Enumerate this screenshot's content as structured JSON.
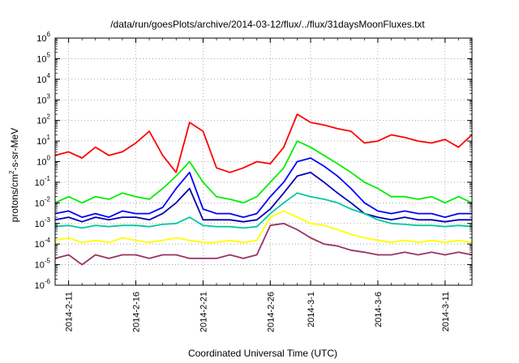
{
  "chart_data": {
    "type": "line",
    "title": "/data/run/goesPlots/archive/2014-03-12/flux/../flux/31daysMoonFluxes.txt",
    "xlabel": "Coordinated Universal Time (UTC)",
    "ylabel": "protons/cm2-s-sr-MeV",
    "ylabel_base": "protons/cm",
    "ylabel_exp": "2",
    "ylabel_rest": "-s-sr-MeV",
    "y_scale": "log",
    "ylim": [
      1e-06,
      1000000.0
    ],
    "y_ticks": [
      {
        "base": "10",
        "exp": "-6",
        "value": 1e-06
      },
      {
        "base": "10",
        "exp": "-5",
        "value": 1e-05
      },
      {
        "base": "10",
        "exp": "-4",
        "value": 0.0001
      },
      {
        "base": "10",
        "exp": "-3",
        "value": 0.001
      },
      {
        "base": "10",
        "exp": "-2",
        "value": 0.01
      },
      {
        "base": "10",
        "exp": "-1",
        "value": 0.1
      },
      {
        "base": "10",
        "exp": "0",
        "value": 1
      },
      {
        "base": "10",
        "exp": "1",
        "value": 10
      },
      {
        "base": "10",
        "exp": "2",
        "value": 100
      },
      {
        "base": "10",
        "exp": "3",
        "value": 1000
      },
      {
        "base": "10",
        "exp": "4",
        "value": 10000
      },
      {
        "base": "10",
        "exp": "5",
        "value": 100000
      },
      {
        "base": "10",
        "exp": "6",
        "value": 1000000
      }
    ],
    "x_ticks": [
      "2014-2-11",
      "2014-2-16",
      "2014-2-21",
      "2014-2-26",
      "2014-3-1",
      "2014-3-6",
      "2014-3-11"
    ],
    "x_tick_dates": [
      "2014-02-11",
      "2014-02-16",
      "2014-02-21",
      "2014-02-26",
      "2014-03-01",
      "2014-03-06",
      "2014-03-11"
    ],
    "xlim": [
      "2014-02-10",
      "2014-03-13"
    ],
    "grid": true,
    "series": [
      {
        "color": "#ff0000",
        "x": [
          "2014-02-10",
          "2014-02-11",
          "2014-02-12",
          "2014-02-13",
          "2014-02-14",
          "2014-02-15",
          "2014-02-16",
          "2014-02-17",
          "2014-02-18",
          "2014-02-19",
          "2014-02-20",
          "2014-02-21",
          "2014-02-22",
          "2014-02-23",
          "2014-02-24",
          "2014-02-25",
          "2014-02-26",
          "2014-02-27",
          "2014-02-28",
          "2014-03-01",
          "2014-03-02",
          "2014-03-03",
          "2014-03-04",
          "2014-03-05",
          "2014-03-06",
          "2014-03-07",
          "2014-03-08",
          "2014-03-09",
          "2014-03-10",
          "2014-03-11",
          "2014-03-12",
          "2014-03-13"
        ],
        "values": [
          2,
          3,
          1.5,
          5,
          2,
          3,
          8,
          30,
          2,
          0.3,
          80,
          30,
          0.5,
          0.3,
          0.5,
          1,
          0.8,
          5,
          200,
          80,
          60,
          40,
          30,
          8,
          10,
          20,
          15,
          10,
          8,
          12,
          5,
          20
        ]
      },
      {
        "color": "#00ee00",
        "x": [
          "2014-02-10",
          "2014-02-11",
          "2014-02-12",
          "2014-02-13",
          "2014-02-14",
          "2014-02-15",
          "2014-02-16",
          "2014-02-17",
          "2014-02-18",
          "2014-02-19",
          "2014-02-20",
          "2014-02-21",
          "2014-02-22",
          "2014-02-23",
          "2014-02-24",
          "2014-02-25",
          "2014-02-26",
          "2014-02-27",
          "2014-02-28",
          "2014-03-01",
          "2014-03-02",
          "2014-03-03",
          "2014-03-04",
          "2014-03-05",
          "2014-03-06",
          "2014-03-07",
          "2014-03-08",
          "2014-03-09",
          "2014-03-10",
          "2014-03-11",
          "2014-03-12",
          "2014-03-13"
        ],
        "values": [
          0.01,
          0.02,
          0.01,
          0.02,
          0.015,
          0.03,
          0.02,
          0.015,
          0.05,
          0.2,
          1,
          0.1,
          0.02,
          0.015,
          0.01,
          0.02,
          0.1,
          0.5,
          10,
          5,
          2,
          0.8,
          0.3,
          0.1,
          0.05,
          0.02,
          0.02,
          0.015,
          0.02,
          0.01,
          0.02,
          0.01
        ]
      },
      {
        "color": "#0000ff",
        "x": [
          "2014-02-10",
          "2014-02-11",
          "2014-02-12",
          "2014-02-13",
          "2014-02-14",
          "2014-02-15",
          "2014-02-16",
          "2014-02-17",
          "2014-02-18",
          "2014-02-19",
          "2014-02-20",
          "2014-02-21",
          "2014-02-22",
          "2014-02-23",
          "2014-02-24",
          "2014-02-25",
          "2014-02-26",
          "2014-02-27",
          "2014-02-28",
          "2014-03-01",
          "2014-03-02",
          "2014-03-03",
          "2014-03-04",
          "2014-03-05",
          "2014-03-06",
          "2014-03-07",
          "2014-03-08",
          "2014-03-09",
          "2014-03-10",
          "2014-03-11",
          "2014-03-12",
          "2014-03-13"
        ],
        "values": [
          0.003,
          0.004,
          0.002,
          0.003,
          0.002,
          0.004,
          0.003,
          0.003,
          0.006,
          0.05,
          0.3,
          0.005,
          0.003,
          0.003,
          0.002,
          0.003,
          0.02,
          0.1,
          1,
          1.5,
          0.6,
          0.2,
          0.05,
          0.01,
          0.004,
          0.003,
          0.004,
          0.003,
          0.003,
          0.002,
          0.003,
          0.003
        ]
      },
      {
        "color": "#0000b0",
        "x": [
          "2014-02-10",
          "2014-02-11",
          "2014-02-12",
          "2014-02-13",
          "2014-02-14",
          "2014-02-15",
          "2014-02-16",
          "2014-02-17",
          "2014-02-18",
          "2014-02-19",
          "2014-02-20",
          "2014-02-21",
          "2014-02-22",
          "2014-02-23",
          "2014-02-24",
          "2014-02-25",
          "2014-02-26",
          "2014-02-27",
          "2014-02-28",
          "2014-03-01",
          "2014-03-02",
          "2014-03-03",
          "2014-03-04",
          "2014-03-05",
          "2014-03-06",
          "2014-03-07",
          "2014-03-08",
          "2014-03-09",
          "2014-03-10",
          "2014-03-11",
          "2014-03-12",
          "2014-03-13"
        ],
        "values": [
          0.0015,
          0.002,
          0.0012,
          0.002,
          0.0015,
          0.002,
          0.002,
          0.0015,
          0.003,
          0.01,
          0.05,
          0.0015,
          0.0015,
          0.0015,
          0.0012,
          0.0015,
          0.005,
          0.03,
          0.2,
          0.3,
          0.1,
          0.03,
          0.01,
          0.003,
          0.002,
          0.0015,
          0.002,
          0.0015,
          0.0015,
          0.0012,
          0.0015,
          0.0015
        ]
      },
      {
        "color": "#00c8a0",
        "x": [
          "2014-02-10",
          "2014-02-11",
          "2014-02-12",
          "2014-02-13",
          "2014-02-14",
          "2014-02-15",
          "2014-02-16",
          "2014-02-17",
          "2014-02-18",
          "2014-02-19",
          "2014-02-20",
          "2014-02-21",
          "2014-02-22",
          "2014-02-23",
          "2014-02-24",
          "2014-02-25",
          "2014-02-26",
          "2014-02-27",
          "2014-02-28",
          "2014-03-01",
          "2014-03-02",
          "2014-03-03",
          "2014-03-04",
          "2014-03-05",
          "2014-03-06",
          "2014-03-07",
          "2014-03-08",
          "2014-03-09",
          "2014-03-10",
          "2014-03-11",
          "2014-03-12",
          "2014-03-13"
        ],
        "values": [
          0.0007,
          0.0008,
          0.0006,
          0.0008,
          0.0007,
          0.0008,
          0.0008,
          0.0007,
          0.0009,
          0.001,
          0.002,
          0.0008,
          0.0007,
          0.0007,
          0.0006,
          0.0007,
          0.003,
          0.01,
          0.03,
          0.02,
          0.015,
          0.01,
          0.005,
          0.003,
          0.0015,
          0.001,
          0.0009,
          0.0008,
          0.0008,
          0.0007,
          0.0008,
          0.0007
        ]
      },
      {
        "color": "#ffff00",
        "x": [
          "2014-02-10",
          "2014-02-11",
          "2014-02-12",
          "2014-02-13",
          "2014-02-14",
          "2014-02-15",
          "2014-02-16",
          "2014-02-17",
          "2014-02-18",
          "2014-02-19",
          "2014-02-20",
          "2014-02-21",
          "2014-02-22",
          "2014-02-23",
          "2014-02-24",
          "2014-02-25",
          "2014-02-26",
          "2014-02-27",
          "2014-02-28",
          "2014-03-01",
          "2014-03-02",
          "2014-03-03",
          "2014-03-04",
          "2014-03-05",
          "2014-03-06",
          "2014-03-07",
          "2014-03-08",
          "2014-03-09",
          "2014-03-10",
          "2014-03-11",
          "2014-03-12",
          "2014-03-13"
        ],
        "values": [
          0.00015,
          0.0002,
          0.00012,
          0.00015,
          0.00012,
          0.0002,
          0.00015,
          0.00012,
          0.00015,
          0.0002,
          0.00015,
          0.00012,
          0.00012,
          0.00015,
          0.00012,
          0.00015,
          0.002,
          0.004,
          0.002,
          0.001,
          0.0008,
          0.0005,
          0.0003,
          0.0002,
          0.00015,
          0.00012,
          0.00015,
          0.00012,
          0.00015,
          0.00012,
          0.00015,
          0.00012
        ]
      },
      {
        "color": "#993366",
        "x": [
          "2014-02-10",
          "2014-02-11",
          "2014-02-12",
          "2014-02-13",
          "2014-02-14",
          "2014-02-15",
          "2014-02-16",
          "2014-02-17",
          "2014-02-18",
          "2014-02-19",
          "2014-02-20",
          "2014-02-21",
          "2014-02-22",
          "2014-02-23",
          "2014-02-24",
          "2014-02-25",
          "2014-02-26",
          "2014-02-27",
          "2014-02-28",
          "2014-03-01",
          "2014-03-02",
          "2014-03-03",
          "2014-03-04",
          "2014-03-05",
          "2014-03-06",
          "2014-03-07",
          "2014-03-08",
          "2014-03-09",
          "2014-03-10",
          "2014-03-11",
          "2014-03-12",
          "2014-03-13"
        ],
        "values": [
          2e-05,
          3e-05,
          1e-05,
          3e-05,
          2e-05,
          3e-05,
          3e-05,
          2e-05,
          3e-05,
          3e-05,
          2e-05,
          2e-05,
          2e-05,
          3e-05,
          2e-05,
          3e-05,
          0.0008,
          0.001,
          0.0005,
          0.0002,
          0.0001,
          8e-05,
          5e-05,
          4e-05,
          3e-05,
          3e-05,
          4e-05,
          3e-05,
          4e-05,
          3e-05,
          4e-05,
          3e-05
        ]
      }
    ]
  }
}
